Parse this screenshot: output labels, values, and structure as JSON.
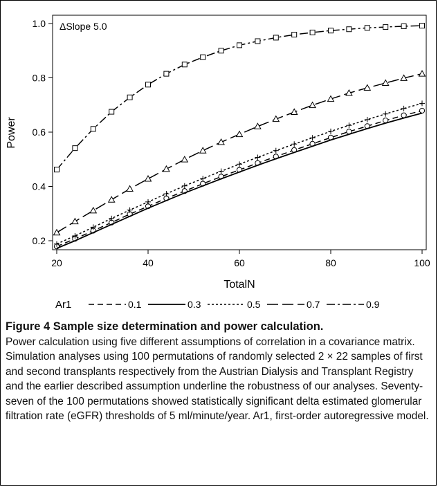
{
  "chart_data": {
    "type": "line",
    "title": "",
    "annotation": "ΔSlope 5.0",
    "xlabel": "TotalN",
    "ylabel": "Power",
    "xlim": [
      20,
      100
    ],
    "ylim": [
      0.18,
      1.0
    ],
    "xticks": [
      "20",
      "40",
      "60",
      "80",
      "100"
    ],
    "yticks": [
      "0.2",
      "0.4",
      "0.6",
      "0.8",
      "1.0"
    ],
    "grid": false,
    "legend_title": "Ar1",
    "legend_position": "bottom",
    "x": [
      20,
      24,
      28,
      32,
      36,
      40,
      44,
      48,
      52,
      56,
      60,
      64,
      68,
      72,
      76,
      80,
      84,
      88,
      92,
      96,
      100
    ],
    "series": [
      {
        "name": "0.1",
        "marker": "circle",
        "dash": "8,5",
        "values": [
          0.179,
          0.207,
          0.237,
          0.267,
          0.298,
          0.327,
          0.356,
          0.383,
          0.41,
          0.436,
          0.461,
          0.486,
          0.51,
          0.534,
          0.557,
          0.58,
          0.602,
          0.622,
          0.643,
          0.662,
          0.679
        ]
      },
      {
        "name": "0.3",
        "marker": "none",
        "dash": "",
        "values": [
          0.172,
          0.2,
          0.23,
          0.26,
          0.29,
          0.32,
          0.348,
          0.376,
          0.402,
          0.428,
          0.453,
          0.478,
          0.502,
          0.525,
          0.548,
          0.571,
          0.592,
          0.613,
          0.633,
          0.652,
          0.67
        ]
      },
      {
        "name": "0.5",
        "marker": "plus",
        "dash": "3,3",
        "values": [
          0.188,
          0.218,
          0.25,
          0.282,
          0.313,
          0.343,
          0.373,
          0.402,
          0.429,
          0.456,
          0.482,
          0.507,
          0.532,
          0.556,
          0.579,
          0.603,
          0.625,
          0.646,
          0.667,
          0.687,
          0.706
        ]
      },
      {
        "name": "0.7",
        "marker": "triangle",
        "dash": "16,6",
        "values": [
          0.23,
          0.271,
          0.311,
          0.351,
          0.391,
          0.428,
          0.464,
          0.499,
          0.532,
          0.563,
          0.592,
          0.621,
          0.648,
          0.674,
          0.699,
          0.722,
          0.744,
          0.763,
          0.781,
          0.799,
          0.815
        ]
      },
      {
        "name": "0.9",
        "marker": "square",
        "dash": "12,4,3,4",
        "values": [
          0.462,
          0.541,
          0.612,
          0.675,
          0.728,
          0.775,
          0.815,
          0.849,
          0.876,
          0.9,
          0.92,
          0.935,
          0.948,
          0.959,
          0.967,
          0.974,
          0.979,
          0.984,
          0.987,
          0.99,
          0.992
        ]
      }
    ]
  },
  "caption": {
    "title": "Figure 4 Sample size determination and power calculation.",
    "body": "Power calculation using five different assumptions of correlation in a covariance matrix. Simulation analyses using 100 permutations of randomly selected 2 × 22 samples of first and second transplants respectively from the Austrian Dialysis and Transplant Registry and the earlier described assumption underline the robustness of our analyses. Seventy-seven of the 100 permutations showed statistically significant delta estimated glomerular filtration rate (eGFR) thresholds of 5 ml/minute/year. Ar1, first-order autoregressive model."
  }
}
